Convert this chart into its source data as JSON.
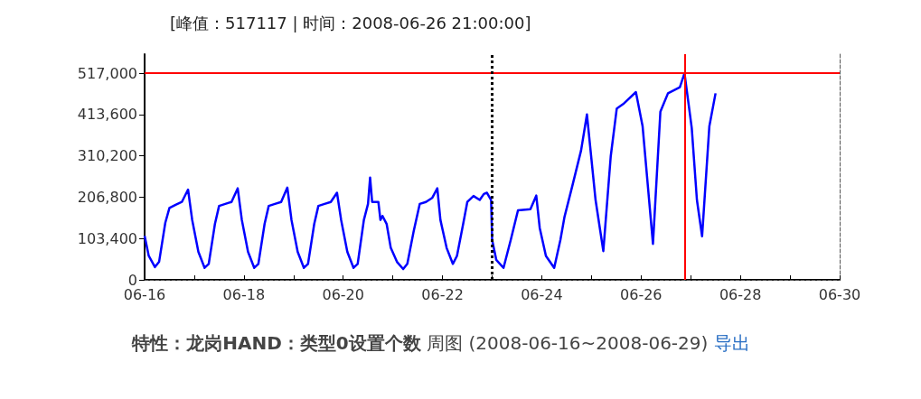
{
  "chart_data": {
    "type": "line",
    "title": "特性：龙岗HAND：类型0设置个数",
    "subtitle": "周图 (2008-06-16~2008-06-29)",
    "annotations": [
      "[峰值：517117 | 时间：2008-06-26 21:00:00]",
      "导出"
    ],
    "x": [
      "2008-06-16T00:00",
      "2008-06-16T02:00",
      "2008-06-16T05:00",
      "2008-06-16T07:00",
      "2008-06-16T10:00",
      "2008-06-16T12:00",
      "2008-06-16T15:00",
      "2008-06-16T18:00",
      "2008-06-16T21:00",
      "2008-06-16T23:00",
      "2008-06-17T02:00",
      "2008-06-17T05:00",
      "2008-06-17T07:00",
      "2008-06-17T10:00",
      "2008-06-17T12:00",
      "2008-06-17T15:00",
      "2008-06-17T18:00",
      "2008-06-17T21:00",
      "2008-06-17T23:00",
      "2008-06-18T02:00",
      "2008-06-18T05:00",
      "2008-06-18T07:00",
      "2008-06-18T10:00",
      "2008-06-18T12:00",
      "2008-06-18T15:00",
      "2008-06-18T18:00",
      "2008-06-18T21:00",
      "2008-06-18T23:00",
      "2008-06-19T02:00",
      "2008-06-19T05:00",
      "2008-06-19T07:00",
      "2008-06-19T10:00",
      "2008-06-19T12:00",
      "2008-06-19T15:00",
      "2008-06-19T18:00",
      "2008-06-19T21:00",
      "2008-06-19T23:00",
      "2008-06-20T02:00",
      "2008-06-20T05:00",
      "2008-06-20T07:00",
      "2008-06-20T10:00",
      "2008-06-20T12:00",
      "2008-06-20T13:00",
      "2008-06-20T14:00",
      "2008-06-20T17:00",
      "2008-06-20T18:00",
      "2008-06-20T19:00",
      "2008-06-20T21:00",
      "2008-06-20T23:00",
      "2008-06-21T02:00",
      "2008-06-21T05:00",
      "2008-06-21T07:00",
      "2008-06-21T10:00",
      "2008-06-21T13:00",
      "2008-06-21T16:00",
      "2008-06-21T19:00",
      "2008-06-21T21:30",
      "2008-06-21T23:00",
      "2008-06-22T02:00",
      "2008-06-22T05:00",
      "2008-06-22T07:00",
      "2008-06-22T10:00",
      "2008-06-22T12:00",
      "2008-06-22T15:00",
      "2008-06-22T18:00",
      "2008-06-22T20:00",
      "2008-06-22T21:30",
      "2008-06-22T23:30",
      "2008-06-23T00:00",
      "2008-06-23T02:00",
      "2008-06-23T05:30",
      "2008-06-23T09:00",
      "2008-06-23T12:30",
      "2008-06-23T18:30",
      "2008-06-23T21:20",
      "2008-06-23T23:00",
      "2008-06-24T02:00",
      "2008-06-24T06:00",
      "2008-06-24T09:00",
      "2008-06-24T11:00",
      "2008-06-24T14:40",
      "2008-06-24T19:00",
      "2008-06-24T21:50",
      "2008-06-25T02:00",
      "2008-06-25T05:45",
      "2008-06-25T09:20",
      "2008-06-25T12:15",
      "2008-06-25T15:20",
      "2008-06-25T21:30",
      "2008-06-26T00:45",
      "2008-06-26T05:45",
      "2008-06-26T09:20",
      "2008-06-26T13:00",
      "2008-06-26T18:45",
      "2008-06-26T21:00",
      "2008-06-27T00:30",
      "2008-06-27T03:00",
      "2008-06-27T05:30",
      "2008-06-27T09:00",
      "2008-06-27T12:00"
    ],
    "series": [
      {
        "color": "#0000ff",
        "values": [
          110000,
          60000,
          32000,
          45000,
          143000,
          180000,
          188000,
          195000,
          226000,
          150000,
          70000,
          30000,
          40000,
          140000,
          185000,
          190000,
          195000,
          229000,
          150000,
          70000,
          30000,
          40000,
          140000,
          185000,
          190000,
          195000,
          231000,
          150000,
          70000,
          30000,
          40000,
          140000,
          185000,
          190000,
          195000,
          218000,
          150000,
          70000,
          30000,
          40000,
          150000,
          190000,
          256000,
          195000,
          195000,
          150000,
          160000,
          140000,
          80000,
          45000,
          27000,
          40000,
          120000,
          190000,
          195000,
          205000,
          229000,
          150000,
          80000,
          40000,
          60000,
          140000,
          195000,
          210000,
          200000,
          215000,
          218000,
          200000,
          100000,
          50000,
          30000,
          100000,
          174000,
          177000,
          211000,
          130000,
          60000,
          30000,
          100000,
          158000,
          233000,
          324000,
          414000,
          200000,
          72000,
          309000,
          429000,
          440000,
          470000,
          384000,
          90000,
          421000,
          467000,
          482000,
          517117,
          380000,
          200000,
          109000,
          384000,
          467000
        ]
      }
    ],
    "xlim": [
      "2008-06-16",
      "2008-06-30"
    ],
    "xticks": [
      {
        "value": "2008-06-16",
        "label": "06-16"
      },
      {
        "value": "2008-06-17",
        "label": null
      },
      {
        "value": "2008-06-18",
        "label": "06-18"
      },
      {
        "value": "2008-06-19",
        "label": null
      },
      {
        "value": "2008-06-20",
        "label": "06-20"
      },
      {
        "value": "2008-06-21",
        "label": null
      },
      {
        "value": "2008-06-22",
        "label": "06-22"
      },
      {
        "value": "2008-06-23",
        "label": null
      },
      {
        "value": "2008-06-24",
        "label": "06-24"
      },
      {
        "value": "2008-06-25",
        "label": null
      },
      {
        "value": "2008-06-26",
        "label": "06-26"
      },
      {
        "value": "2008-06-27",
        "label": null
      },
      {
        "value": "2008-06-28",
        "label": "06-28"
      },
      {
        "value": "2008-06-29",
        "label": null
      },
      {
        "value": "2008-06-30",
        "label": "06-30"
      }
    ],
    "ylim": [
      0,
      565000
    ],
    "yticks": [
      0,
      {
        "value": 103400,
        "label": "103,400"
      },
      {
        "value": 206800,
        "label": "206,800"
      },
      {
        "value": 310200,
        "label": "310,200"
      },
      {
        "value": 413600,
        "label": "413,600"
      },
      {
        "value": 517000,
        "label": "517,000"
      }
    ],
    "ref_lines": [
      {
        "axis": "y",
        "value": 517117,
        "color": "#ff0000",
        "line_style": "solid"
      },
      {
        "axis": "x",
        "value": "2008-06-26T21:00",
        "color": "#ff0000",
        "line_style": "solid"
      },
      {
        "axis": "x",
        "value": "2008-06-23",
        "color": "#000000",
        "line_style": "dotted"
      }
    ],
    "grid": false,
    "marker": "none",
    "line_style": "solid"
  }
}
